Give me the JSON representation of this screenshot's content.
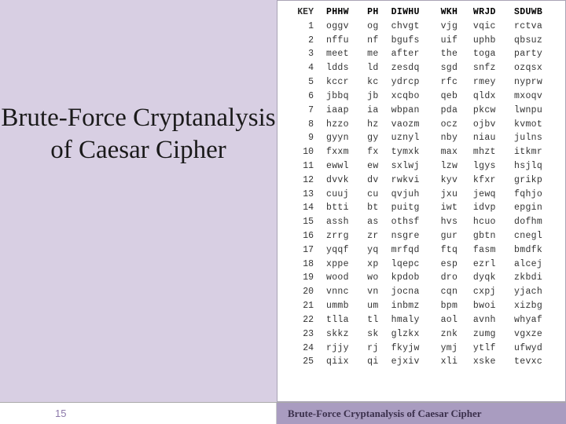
{
  "title": "Brute-Force Cryptanalysis of Caesar Cipher",
  "footer": {
    "page_number": "15",
    "caption": "Brute-Force Cryptanalysis of Caesar Cipher"
  },
  "table": {
    "header": {
      "key_label": "KEY",
      "ciphertext": [
        "PHHW",
        "PH",
        "DIWHU",
        "WKH",
        "WRJD",
        "SDUWB"
      ]
    },
    "rows": [
      {
        "k": "1",
        "w": [
          "oggv",
          "og",
          "chvgt",
          "vjg",
          "vqic",
          "rctva"
        ]
      },
      {
        "k": "2",
        "w": [
          "nffu",
          "nf",
          "bgufs",
          "uif",
          "uphb",
          "qbsuz"
        ]
      },
      {
        "k": "3",
        "w": [
          "meet",
          "me",
          "after",
          "the",
          "toga",
          "party"
        ]
      },
      {
        "k": "4",
        "w": [
          "ldds",
          "ld",
          "zesdq",
          "sgd",
          "snfz",
          "ozqsx"
        ]
      },
      {
        "k": "5",
        "w": [
          "kccr",
          "kc",
          "ydrcp",
          "rfc",
          "rmey",
          "nyprw"
        ]
      },
      {
        "k": "6",
        "w": [
          "jbbq",
          "jb",
          "xcqbo",
          "qeb",
          "qldx",
          "mxoqv"
        ]
      },
      {
        "k": "7",
        "w": [
          "iaap",
          "ia",
          "wbpan",
          "pda",
          "pkcw",
          "lwnpu"
        ]
      },
      {
        "k": "8",
        "w": [
          "hzzo",
          "hz",
          "vaozm",
          "ocz",
          "ojbv",
          "kvmot"
        ]
      },
      {
        "k": "9",
        "w": [
          "gyyn",
          "gy",
          "uznyl",
          "nby",
          "niau",
          "julns"
        ]
      },
      {
        "k": "10",
        "w": [
          "fxxm",
          "fx",
          "tymxk",
          "max",
          "mhzt",
          "itkmr"
        ]
      },
      {
        "k": "11",
        "w": [
          "ewwl",
          "ew",
          "sxlwj",
          "lzw",
          "lgys",
          "hsjlq"
        ]
      },
      {
        "k": "12",
        "w": [
          "dvvk",
          "dv",
          "rwkvi",
          "kyv",
          "kfxr",
          "grikp"
        ]
      },
      {
        "k": "13",
        "w": [
          "cuuj",
          "cu",
          "qvjuh",
          "jxu",
          "jewq",
          "fqhjo"
        ]
      },
      {
        "k": "14",
        "w": [
          "btti",
          "bt",
          "puitg",
          "iwt",
          "idvp",
          "epgin"
        ]
      },
      {
        "k": "15",
        "w": [
          "assh",
          "as",
          "othsf",
          "hvs",
          "hcuo",
          "dofhm"
        ]
      },
      {
        "k": "16",
        "w": [
          "zrrg",
          "zr",
          "nsgre",
          "gur",
          "gbtn",
          "cnegl"
        ]
      },
      {
        "k": "17",
        "w": [
          "yqqf",
          "yq",
          "mrfqd",
          "ftq",
          "fasm",
          "bmdfk"
        ]
      },
      {
        "k": "18",
        "w": [
          "xppe",
          "xp",
          "lqepc",
          "esp",
          "ezrl",
          "alcej"
        ]
      },
      {
        "k": "19",
        "w": [
          "wood",
          "wo",
          "kpdob",
          "dro",
          "dyqk",
          "zkbdi"
        ]
      },
      {
        "k": "20",
        "w": [
          "vnnc",
          "vn",
          "jocna",
          "cqn",
          "cxpj",
          "yjach"
        ]
      },
      {
        "k": "21",
        "w": [
          "ummb",
          "um",
          "inbmz",
          "bpm",
          "bwoi",
          "xizbg"
        ]
      },
      {
        "k": "22",
        "w": [
          "tlla",
          "tl",
          "hmaly",
          "aol",
          "avnh",
          "whyaf"
        ]
      },
      {
        "k": "23",
        "w": [
          "skkz",
          "sk",
          "glzkx",
          "znk",
          "zumg",
          "vgxze"
        ]
      },
      {
        "k": "24",
        "w": [
          "rjjy",
          "rj",
          "fkyjw",
          "ymj",
          "ytlf",
          "ufwyd"
        ]
      },
      {
        "k": "25",
        "w": [
          "qiix",
          "qi",
          "ejxiv",
          "xli",
          "xske",
          "tevxc"
        ]
      }
    ]
  },
  "colors": {
    "left_panel_bg": "#d8cfe3",
    "footer_right_bg": "#a99cc0",
    "footer_page_color": "#8d79aa",
    "border": "#a9a3b5"
  }
}
